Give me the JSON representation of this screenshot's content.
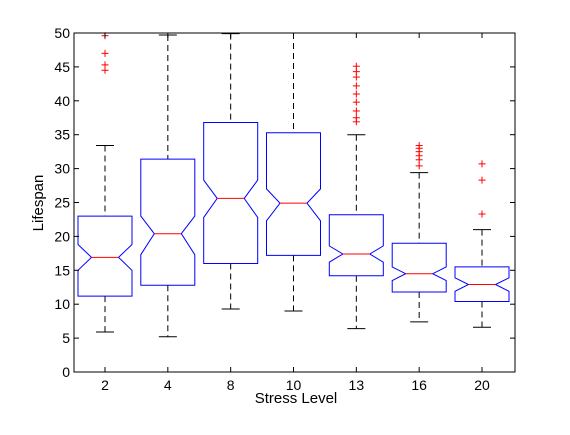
{
  "chart_data": {
    "type": "box",
    "title": "",
    "xlabel": "Stress Level",
    "ylabel": "Lifespan",
    "ylim": [
      0,
      50
    ],
    "yticks": [
      0,
      5,
      10,
      15,
      20,
      25,
      30,
      35,
      40,
      45,
      50
    ],
    "grid": false,
    "notched": true,
    "colors": {
      "box": "#0000ff",
      "median": "#ff0000",
      "whisker": "#000000",
      "outlier": "#ff0000",
      "axis": "#000000"
    },
    "categories": [
      "2",
      "4",
      "8",
      "10",
      "13",
      "16",
      "20"
    ],
    "boxes": [
      {
        "category": "2",
        "whisker_low": 5.9,
        "q1": 11.2,
        "median": 16.9,
        "q3": 23.0,
        "whisker_high": 33.4,
        "notch_low": 15.0,
        "notch_high": 18.8,
        "outliers": [
          44.5,
          45.3,
          47.0,
          49.6
        ]
      },
      {
        "category": "4",
        "whisker_low": 5.2,
        "q1": 12.8,
        "median": 20.4,
        "q3": 31.4,
        "whisker_high": 49.7,
        "notch_low": 17.3,
        "notch_high": 23.0,
        "outliers": []
      },
      {
        "category": "8",
        "whisker_low": 9.3,
        "q1": 16.0,
        "median": 25.6,
        "q3": 36.8,
        "whisker_high": 49.9,
        "notch_low": 22.8,
        "notch_high": 28.3,
        "outliers": []
      },
      {
        "category": "10",
        "whisker_low": 9.0,
        "q1": 17.2,
        "median": 24.9,
        "q3": 35.3,
        "whisker_high": 50.0,
        "notch_low": 22.3,
        "notch_high": 27.0,
        "outliers": []
      },
      {
        "category": "13",
        "whisker_low": 6.4,
        "q1": 14.2,
        "median": 17.4,
        "q3": 23.2,
        "whisker_high": 35.0,
        "notch_low": 16.2,
        "notch_high": 18.6,
        "outliers": [
          36.9,
          37.5,
          38.5,
          39.8,
          41.0,
          42.2,
          43.5,
          44.3,
          45.1
        ]
      },
      {
        "category": "16",
        "whisker_low": 7.4,
        "q1": 11.8,
        "median": 14.5,
        "q3": 19.0,
        "whisker_high": 29.4,
        "notch_low": 13.5,
        "notch_high": 15.5,
        "outliers": [
          30.4,
          31.3,
          31.9,
          32.5,
          33.0,
          33.4
        ]
      },
      {
        "category": "20",
        "whisker_low": 6.6,
        "q1": 10.4,
        "median": 12.9,
        "q3": 15.5,
        "whisker_high": 21.0,
        "notch_low": 11.9,
        "notch_high": 13.9,
        "outliers": [
          23.3,
          28.3,
          30.7
        ]
      }
    ]
  }
}
